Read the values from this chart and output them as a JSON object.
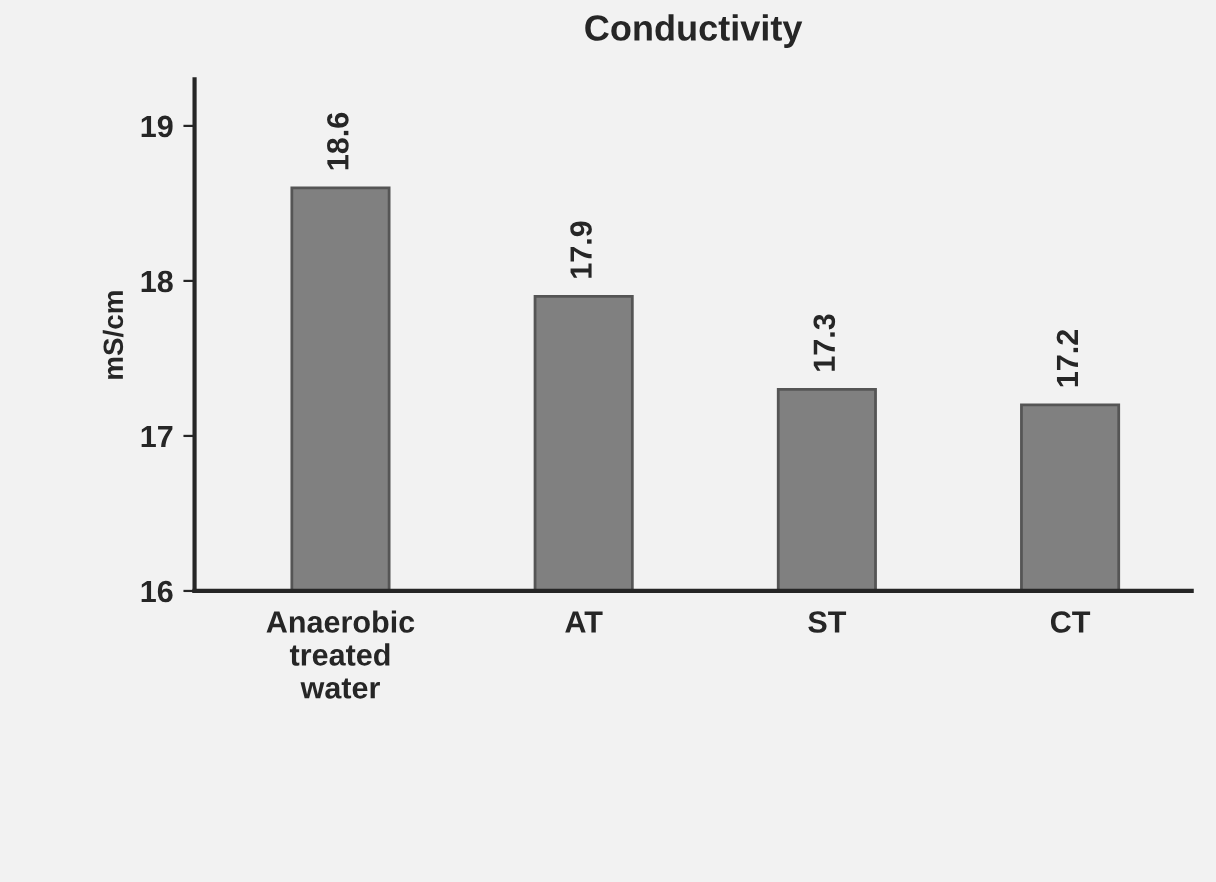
{
  "chart_data": {
    "type": "bar",
    "title": "Conductivity",
    "ylabel": "mS/cm",
    "categories": [
      "Anaerobic\ntreated\nwater",
      "AT",
      "ST",
      "CT"
    ],
    "values": [
      18.6,
      17.9,
      17.3,
      17.2
    ],
    "color": "#808080",
    "ylim": [
      16,
      19.3
    ],
    "yticks": [
      16,
      17,
      18,
      19
    ],
    "grid": false,
    "data_labels": true
  }
}
